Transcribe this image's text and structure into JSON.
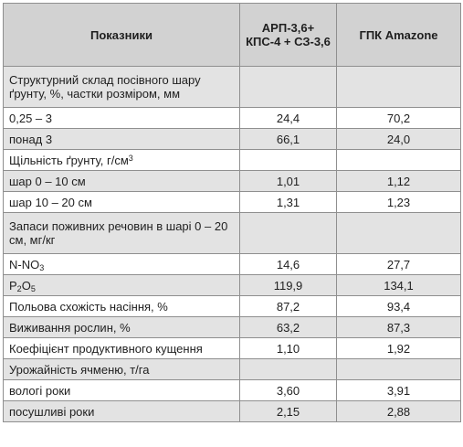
{
  "table": {
    "headers": [
      "Показники",
      "АРП-3,6+ КПС-4 + СЗ-3,6",
      "ГПК Amazone"
    ],
    "rows": [
      {
        "label": "Структурний склад посівного шару ґрунту, %, частки розміром, мм",
        "v1": "",
        "v2": ""
      },
      {
        "label": "0,25 – 3",
        "v1": "24,4",
        "v2": "70,2"
      },
      {
        "label": "понад 3",
        "v1": "66,1",
        "v2": "24,0"
      },
      {
        "label_main": "Щільність ґрунту, г/см",
        "label_sup": "3",
        "v1": "",
        "v2": ""
      },
      {
        "label": "шар 0 – 10 см",
        "v1": "1,01",
        "v2": "1,12"
      },
      {
        "label": "шар 10 – 20 см",
        "v1": "1,31",
        "v2": "1,23"
      },
      {
        "label": "Запаси поживних речовин в шарі 0 – 20 см, мг/кг",
        "v1": "",
        "v2": ""
      },
      {
        "label_main": "N-NO",
        "label_sub": "3",
        "v1": "14,6",
        "v2": "27,7"
      },
      {
        "label_p": "P",
        "label_sub1": "2",
        "label_o": "O",
        "label_sub2": "5",
        "v1": "119,9",
        "v2": "134,1"
      },
      {
        "label": "Польова схожість насіння, %",
        "v1": "87,2",
        "v2": "93,4"
      },
      {
        "label": "Виживання рослин, %",
        "v1": "63,2",
        "v2": "87,3"
      },
      {
        "label": "Коефіцієнт продуктивного кущення",
        "v1": "1,10",
        "v2": "1,92"
      },
      {
        "label": "Урожайність ячменю, т/га",
        "v1": "",
        "v2": ""
      },
      {
        "label": "вологі роки",
        "v1": "3,60",
        "v2": "3,91"
      },
      {
        "label": "посушливі роки",
        "v1": "2,15",
        "v2": "2,88"
      }
    ]
  }
}
